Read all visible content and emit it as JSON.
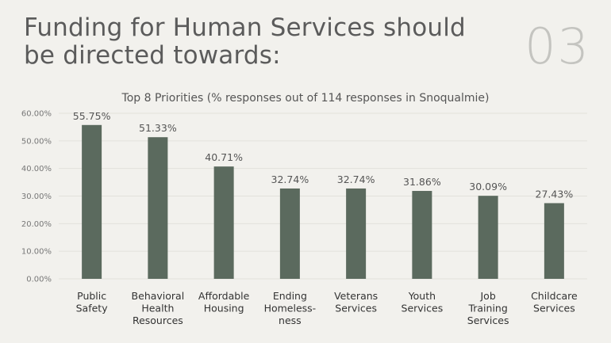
{
  "slide": {
    "title_lines": [
      "Funding for Human Services should",
      "be directed towards:"
    ],
    "number": "03"
  },
  "chart_data": {
    "type": "bar",
    "title": "Top 8 Priorities (% responses out of 114 responses in Snoqualmie)",
    "categories": [
      [
        "Public",
        "Safety"
      ],
      [
        "Behavioral",
        "Health",
        "Resources"
      ],
      [
        "Affordable",
        "Housing"
      ],
      [
        "Ending",
        "Homeless-",
        "ness"
      ],
      [
        "Veterans",
        "Services"
      ],
      [
        "Youth",
        "Services"
      ],
      [
        "Job",
        "Training",
        "Services"
      ],
      [
        "Childcare",
        "Services"
      ]
    ],
    "values": [
      55.75,
      51.33,
      40.71,
      32.74,
      32.74,
      31.86,
      30.09,
      27.43
    ],
    "data_labels": [
      "55.75%",
      "51.33%",
      "40.71%",
      "32.74%",
      "32.74%",
      "31.86%",
      "30.09%",
      "27.43%"
    ],
    "yticks": [
      "0.00%",
      "10.00%",
      "20.00%",
      "30.00%",
      "40.00%",
      "50.00%",
      "60.00%"
    ],
    "ylim": [
      0,
      60
    ],
    "grid": true,
    "bar_color": "#5b6a5e",
    "grid_color": "#e2e1dc"
  }
}
